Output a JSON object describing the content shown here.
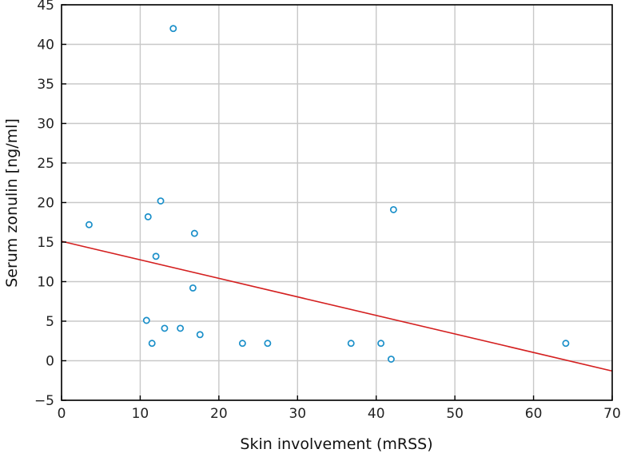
{
  "chart_data": {
    "type": "scatter",
    "xlabel": "Skin involvement (mRSS)",
    "ylabel": "Serum zonulin [ng/ml]",
    "xlim": [
      0,
      70
    ],
    "ylim": [
      -5,
      45
    ],
    "xticks": [
      0,
      10,
      20,
      30,
      40,
      50,
      60,
      70
    ],
    "yticks": [
      -5,
      0,
      5,
      10,
      15,
      20,
      25,
      30,
      35,
      40,
      45
    ],
    "grid": true,
    "marker_color": "#1a8fc9",
    "series": [
      {
        "points": [
          {
            "x": 3.5,
            "y": 17.2
          },
          {
            "x": 11.0,
            "y": 18.2
          },
          {
            "x": 12.6,
            "y": 20.2
          },
          {
            "x": 14.2,
            "y": 42.0
          },
          {
            "x": 16.9,
            "y": 16.1
          },
          {
            "x": 12.0,
            "y": 13.2
          },
          {
            "x": 16.7,
            "y": 9.2
          },
          {
            "x": 10.8,
            "y": 5.1
          },
          {
            "x": 13.1,
            "y": 4.1
          },
          {
            "x": 15.1,
            "y": 4.1
          },
          {
            "x": 11.5,
            "y": 2.2
          },
          {
            "x": 17.6,
            "y": 3.3
          },
          {
            "x": 23.0,
            "y": 2.2
          },
          {
            "x": 26.2,
            "y": 2.2
          },
          {
            "x": 36.8,
            "y": 2.2
          },
          {
            "x": 40.6,
            "y": 2.2
          },
          {
            "x": 41.9,
            "y": 0.2
          },
          {
            "x": 42.2,
            "y": 19.1
          },
          {
            "x": 64.1,
            "y": 2.2
          }
        ]
      }
    ],
    "trendline": {
      "color": "#d42020",
      "from": {
        "x": 0,
        "y": 15.1
      },
      "to": {
        "x": 70,
        "y": -1.3
      }
    }
  }
}
